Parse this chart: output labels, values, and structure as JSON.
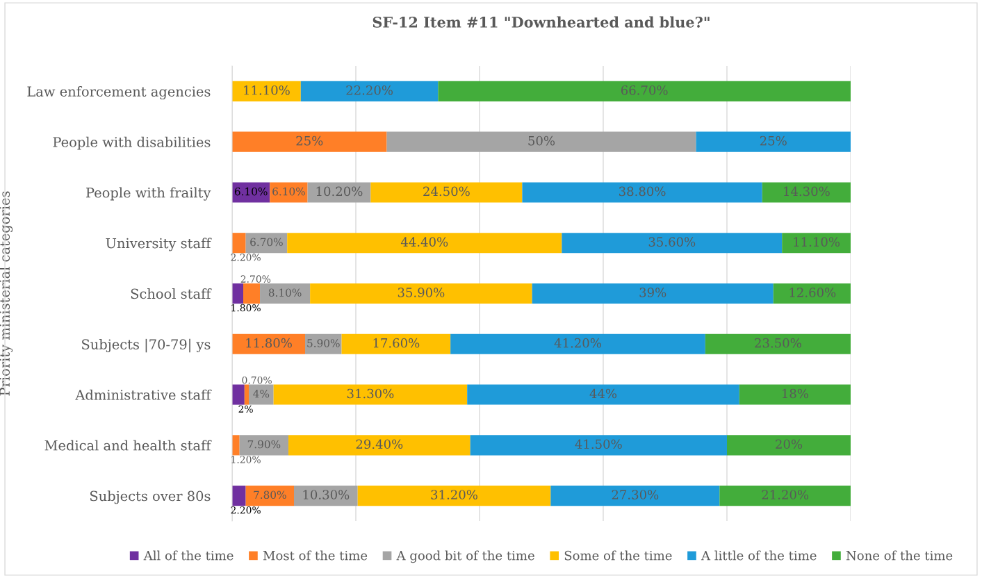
{
  "chart_data": {
    "type": "bar",
    "orientation": "horizontal",
    "stacked": true,
    "title": "SF-12 Item #11 \"Downhearted and blue?\"",
    "ylabel": "Priority ministerial categories",
    "categories": [
      "Law enforcement agencies",
      "People with disabilities",
      "People with frailty",
      "University staff",
      "School staff",
      "Subjects |70-79| ys",
      "Administrative staff",
      "Medical and health staff",
      "Subjects over 80s"
    ],
    "series": [
      {
        "name": "All of the time",
        "color": "#7030a0",
        "values": [
          null,
          null,
          6.1,
          null,
          1.8,
          null,
          2,
          null,
          2.2
        ],
        "value_labels": [
          null,
          null,
          "6.10%",
          null,
          "1.80%",
          null,
          "2%",
          null,
          "2.20%"
        ]
      },
      {
        "name": "Most of the time",
        "color": "#ff7f27",
        "values": [
          null,
          25,
          6.1,
          2.2,
          2.7,
          11.8,
          0.7,
          1.2,
          7.8
        ],
        "value_labels": [
          null,
          "25%",
          "6.10%",
          "2.20%",
          "2.70%",
          "11.80%",
          "0.70%",
          "1.20%",
          "7.80%"
        ]
      },
      {
        "name": "A good bit of the time",
        "color": "#a5a5a5",
        "values": [
          null,
          50,
          10.2,
          6.7,
          8.1,
          5.9,
          4,
          7.9,
          10.3
        ],
        "value_labels": [
          null,
          "50%",
          "10.20%",
          "6.70%",
          "8.10%",
          "5.90%",
          "4%",
          "7.90%",
          "10.30%"
        ]
      },
      {
        "name": "Some of the time",
        "color": "#ffc000",
        "values": [
          11.1,
          null,
          24.5,
          44.4,
          35.9,
          17.6,
          31.3,
          29.4,
          31.2
        ],
        "value_labels": [
          "11.10%",
          null,
          "24.50%",
          "44.40%",
          "35.90%",
          "17.60%",
          "31.30%",
          "29.40%",
          "31.20%"
        ]
      },
      {
        "name": "A little of the time",
        "color": "#1f9bd9",
        "values": [
          22.2,
          25,
          38.8,
          35.6,
          39,
          41.2,
          44,
          41.5,
          27.3
        ],
        "value_labels": [
          "22.20%",
          "25%",
          "38.80%",
          "35.60%",
          "39%",
          "41.20%",
          "44%",
          "41.50%",
          "27.30%"
        ]
      },
      {
        "name": "None of the time",
        "color": "#43ad3b",
        "values": [
          66.7,
          null,
          14.3,
          11.1,
          12.6,
          23.5,
          18,
          20,
          21.2
        ],
        "value_labels": [
          "66.70%",
          null,
          "14.30%",
          "11.10%",
          "12.60%",
          "23.50%",
          "18%",
          "20%",
          "21.20%"
        ]
      }
    ],
    "xlim": [
      0,
      100
    ],
    "xticks": [
      {
        "value": 0,
        "label": null
      },
      {
        "value": 20,
        "label": null
      },
      {
        "value": 40,
        "label": null
      },
      {
        "value": 60,
        "label": null
      },
      {
        "value": 80,
        "label": null
      },
      {
        "value": 100,
        "label": null
      }
    ],
    "tick_labels": "y",
    "grid": "x",
    "legend": "bottom"
  }
}
